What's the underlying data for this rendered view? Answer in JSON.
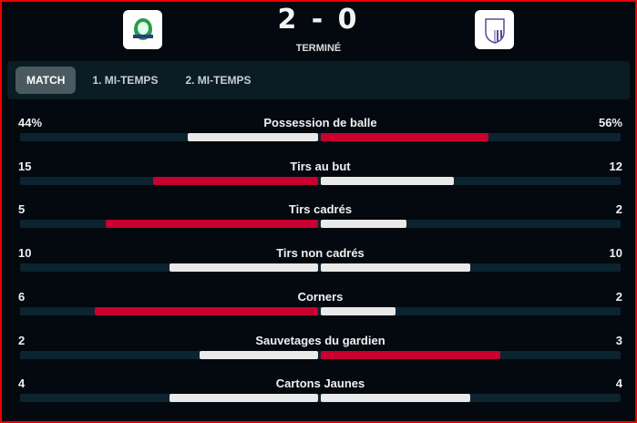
{
  "header": {
    "score": "2 - 0",
    "status": "TERMINÉ",
    "home_logo": "home-team-crest",
    "away_logo": "away-team-crest"
  },
  "tabs": [
    {
      "label": "MATCH",
      "active": true
    },
    {
      "label": "1. MI-TEMPS",
      "active": false
    },
    {
      "label": "2. MI-TEMPS",
      "active": false
    }
  ],
  "colors": {
    "leader": "#c8002f",
    "other": "#e9e9e9",
    "track": "#0c2430"
  },
  "stats": [
    {
      "name": "Possession de balle",
      "home": "44%",
      "away": "56%",
      "hv": 44,
      "av": 56
    },
    {
      "name": "Tirs au but",
      "home": "15",
      "away": "12",
      "hv": 15,
      "av": 12
    },
    {
      "name": "Tirs cadrés",
      "home": "5",
      "away": "2",
      "hv": 5,
      "av": 2
    },
    {
      "name": "Tirs non cadrés",
      "home": "10",
      "away": "10",
      "hv": 10,
      "av": 10
    },
    {
      "name": "Corners",
      "home": "6",
      "away": "2",
      "hv": 6,
      "av": 2
    },
    {
      "name": "Sauvetages du gardien",
      "home": "2",
      "away": "3",
      "hv": 2,
      "av": 3
    },
    {
      "name": "Cartons Jaunes",
      "home": "4",
      "away": "4",
      "hv": 4,
      "av": 4
    }
  ]
}
